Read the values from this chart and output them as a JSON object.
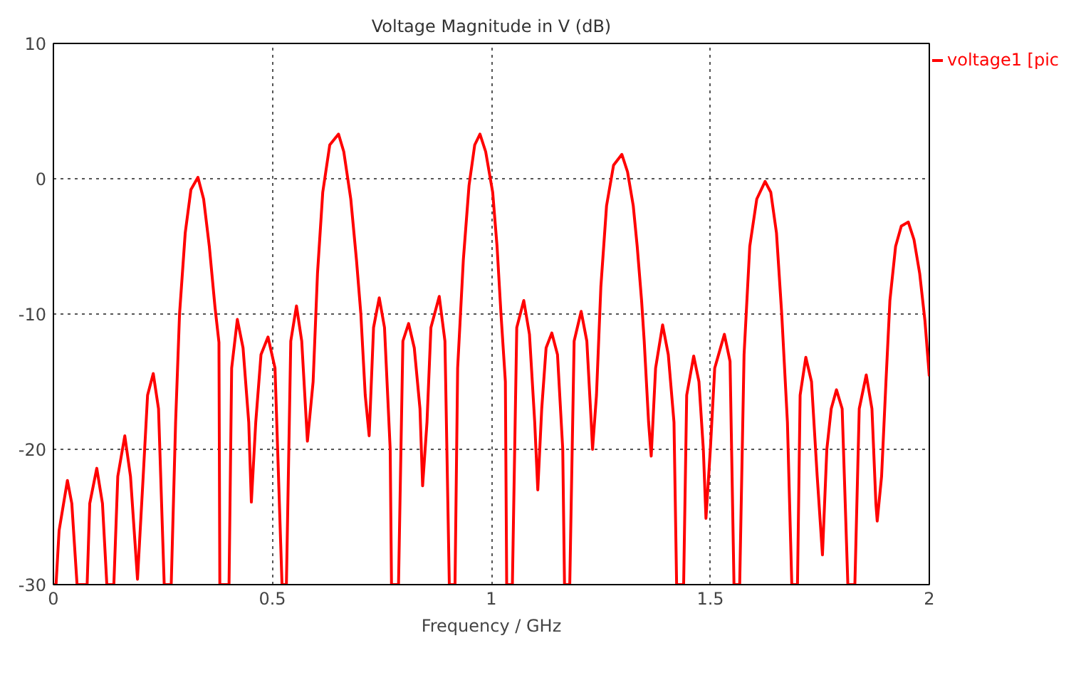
{
  "chart_data": {
    "type": "line",
    "title": "Voltage Magnitude in V (dB)",
    "xlabel": "Frequency / GHz",
    "xlim": [
      0,
      2
    ],
    "xticks": [
      0,
      0.5,
      1,
      1.5,
      2
    ],
    "ylim": [
      -30,
      10
    ],
    "yticks": [
      -30,
      -20,
      -10,
      0,
      10
    ],
    "grid": true,
    "legend": "top right",
    "line_style": "solid",
    "marker": "none",
    "series": [
      {
        "name": "voltage1 [pic",
        "color": "#ff0000",
        "x": [
          0,
          0.006,
          0.013,
          0.032,
          0.042,
          0.054,
          0.077,
          0.083,
          0.099,
          0.112,
          0.122,
          0.138,
          0.147,
          0.163,
          0.176,
          0.192,
          0.205,
          0.215,
          0.228,
          0.24,
          0.253,
          0.269,
          0.279,
          0.288,
          0.301,
          0.314,
          0.33,
          0.343,
          0.356,
          0.369,
          0.378,
          0.38,
          0.401,
          0.407,
          0.42,
          0.433,
          0.446,
          0.452,
          0.462,
          0.474,
          0.49,
          0.506,
          0.522,
          0.532,
          0.542,
          0.555,
          0.567,
          0.58,
          0.593,
          0.603,
          0.615,
          0.631,
          0.651,
          0.663,
          0.679,
          0.692,
          0.702,
          0.712,
          0.721,
          0.731,
          0.744,
          0.756,
          0.769,
          0.772,
          0.788,
          0.798,
          0.811,
          0.824,
          0.837,
          0.843,
          0.853,
          0.862,
          0.881,
          0.894,
          0.904,
          0.917,
          0.923,
          0.936,
          0.949,
          0.962,
          0.974,
          0.987,
          1.003,
          1.013,
          1.022,
          1.032,
          1.035,
          1.048,
          1.058,
          1.074,
          1.087,
          1.099,
          1.106,
          1.115,
          1.125,
          1.138,
          1.151,
          1.163,
          1.167,
          1.179,
          1.189,
          1.205,
          1.218,
          1.228,
          1.231,
          1.24,
          1.25,
          1.263,
          1.279,
          1.298,
          1.311,
          1.324,
          1.333,
          1.343,
          1.349,
          1.359,
          1.365,
          1.375,
          1.391,
          1.404,
          1.417,
          1.423,
          1.439,
          1.446,
          1.462,
          1.474,
          1.484,
          1.49,
          1.5,
          1.51,
          1.532,
          1.545,
          1.554,
          1.567,
          1.577,
          1.59,
          1.606,
          1.625,
          1.638,
          1.651,
          1.663,
          1.676,
          1.686,
          1.699,
          1.705,
          1.718,
          1.731,
          1.744,
          1.756,
          1.766,
          1.776,
          1.788,
          1.801,
          1.814,
          1.83,
          1.84,
          1.856,
          1.869,
          1.878,
          1.881,
          1.891,
          1.901,
          1.91,
          1.923,
          1.936,
          1.952,
          1.965,
          1.978,
          1.99,
          2.0
        ],
        "values": [
          -30,
          -30,
          -26,
          -22.3,
          -24,
          -30,
          -30,
          -24,
          -21.4,
          -24,
          -30,
          -30,
          -22,
          -19.0,
          -22,
          -29.6,
          -22,
          -16,
          -14.4,
          -17,
          -30,
          -30,
          -18,
          -10,
          -4,
          -0.8,
          0.1,
          -1.5,
          -5,
          -9.5,
          -12.1,
          -30,
          -30,
          -14,
          -10.4,
          -12.5,
          -18,
          -23.9,
          -18,
          -13,
          -11.7,
          -14,
          -30,
          -30,
          -12,
          -9.4,
          -12,
          -19.4,
          -15,
          -7,
          -1,
          2.5,
          3.3,
          2,
          -1.5,
          -6,
          -10,
          -16,
          -19.0,
          -11,
          -8.8,
          -11,
          -20,
          -30,
          -30,
          -12,
          -10.7,
          -12.5,
          -17,
          -22.7,
          -18,
          -11,
          -8.7,
          -12,
          -30,
          -30,
          -14,
          -6,
          -0.5,
          2.5,
          3.3,
          2,
          -1,
          -5,
          -10,
          -15,
          -30,
          -30,
          -11,
          -9.0,
          -11.5,
          -18,
          -23.0,
          -17,
          -12.5,
          -11.4,
          -13,
          -20,
          -30,
          -30,
          -12,
          -9.8,
          -12,
          -18,
          -20.0,
          -16,
          -8,
          -2,
          1,
          1.8,
          0.5,
          -2,
          -5,
          -9,
          -12,
          -18,
          -20.5,
          -14,
          -10.8,
          -13,
          -18,
          -30,
          -30,
          -16,
          -13.1,
          -15,
          -20,
          -25.1,
          -20,
          -14,
          -11.5,
          -13.5,
          -30,
          -30,
          -13,
          -5,
          -1.5,
          -0.2,
          -1,
          -4,
          -10,
          -18,
          -30,
          -30,
          -16,
          -13.2,
          -15,
          -22,
          -27.8,
          -20,
          -17,
          -15.6,
          -17,
          -30,
          -30,
          -17,
          -14.5,
          -17,
          -24,
          -25.3,
          -22,
          -15,
          -9,
          -5,
          -3.5,
          -3.2,
          -4.5,
          -7,
          -10.5,
          -14.6
        ]
      }
    ]
  }
}
